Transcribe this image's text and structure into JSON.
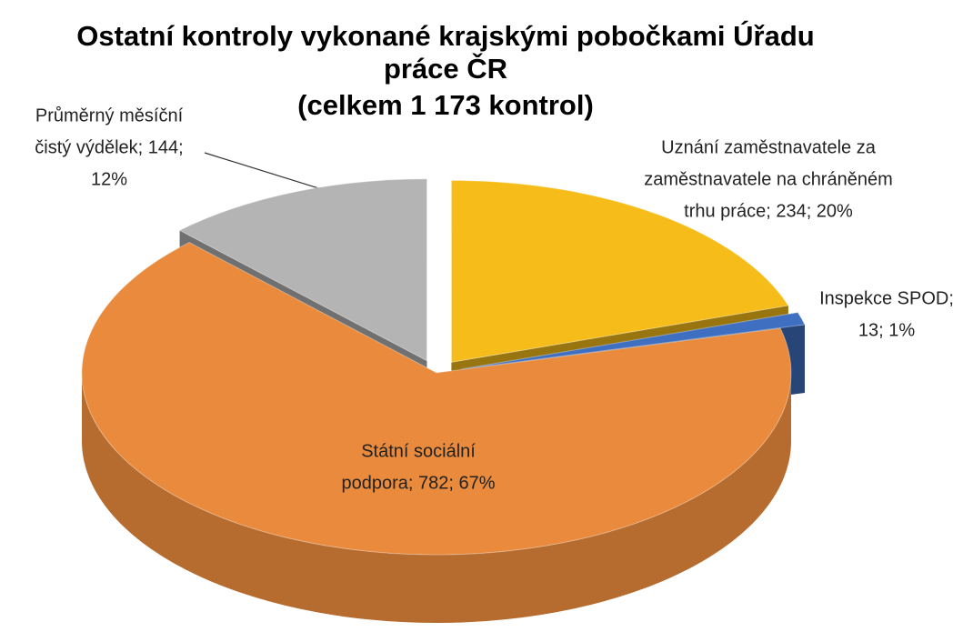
{
  "chart_data": {
    "type": "pie3d",
    "title": "Ostatní kontroly vykonané krajskými pobočkami Úřadu práce ČR",
    "subtitle": "(celkem 1 173 kontrol)",
    "values": [
      234,
      13,
      782,
      144
    ],
    "labels": [
      [
        "Uznání zaměstnavatele za",
        "zaměstnavatele na chráněném",
        "trhu práce; 234; 20%"
      ],
      [
        "Inspekce SPOD;",
        "13; 1%"
      ],
      [
        "Státní sociální",
        "podpora; 782; 67%"
      ],
      [
        "Průměrný měsíční",
        "čistý výdělek; 144;",
        "12%"
      ]
    ],
    "colors": [
      "#f6bd1a",
      "#3f6fc0",
      "#e98a3c",
      "#b4b4b4"
    ],
    "exploded": [
      true,
      true,
      false,
      true
    ]
  }
}
